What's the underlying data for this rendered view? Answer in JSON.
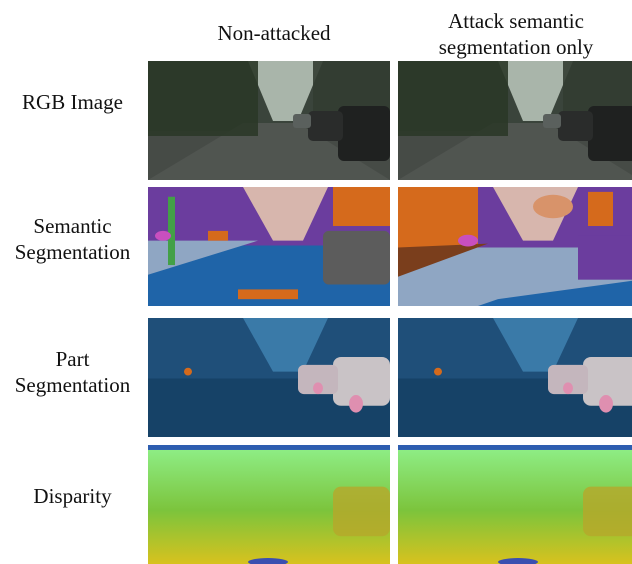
{
  "figure": {
    "columns": [
      {
        "label": "Non-attacked"
      },
      {
        "label": "Attack semantic\nsegmentation only"
      }
    ],
    "rows": [
      {
        "label": "RGB Image",
        "type": "rgb"
      },
      {
        "label": "Semantic\nSegmentation",
        "type": "semantic"
      },
      {
        "label": "Part\nSegmentation",
        "type": "part"
      },
      {
        "label": "Disparity",
        "type": "disparity"
      }
    ]
  },
  "colors": {
    "sky_rgb": "#9aa79c",
    "road_rgb": "#3f4440",
    "tree_rgb": "#2e3b2c",
    "sem_vegetation": "#6b3d9e",
    "sem_sky": "#d7b6ad",
    "sem_road": "#1f64a8",
    "sem_sidewalk": "#8fa6c3",
    "sem_car": "#5c5c5c",
    "sem_building": "#d56a1c",
    "part_base": "#1b4c75",
    "part_car": "#c9c3c6",
    "disp_far": "#8ff08a",
    "disp_mid": "#7cc43c",
    "disp_near": "#d8c21e"
  }
}
